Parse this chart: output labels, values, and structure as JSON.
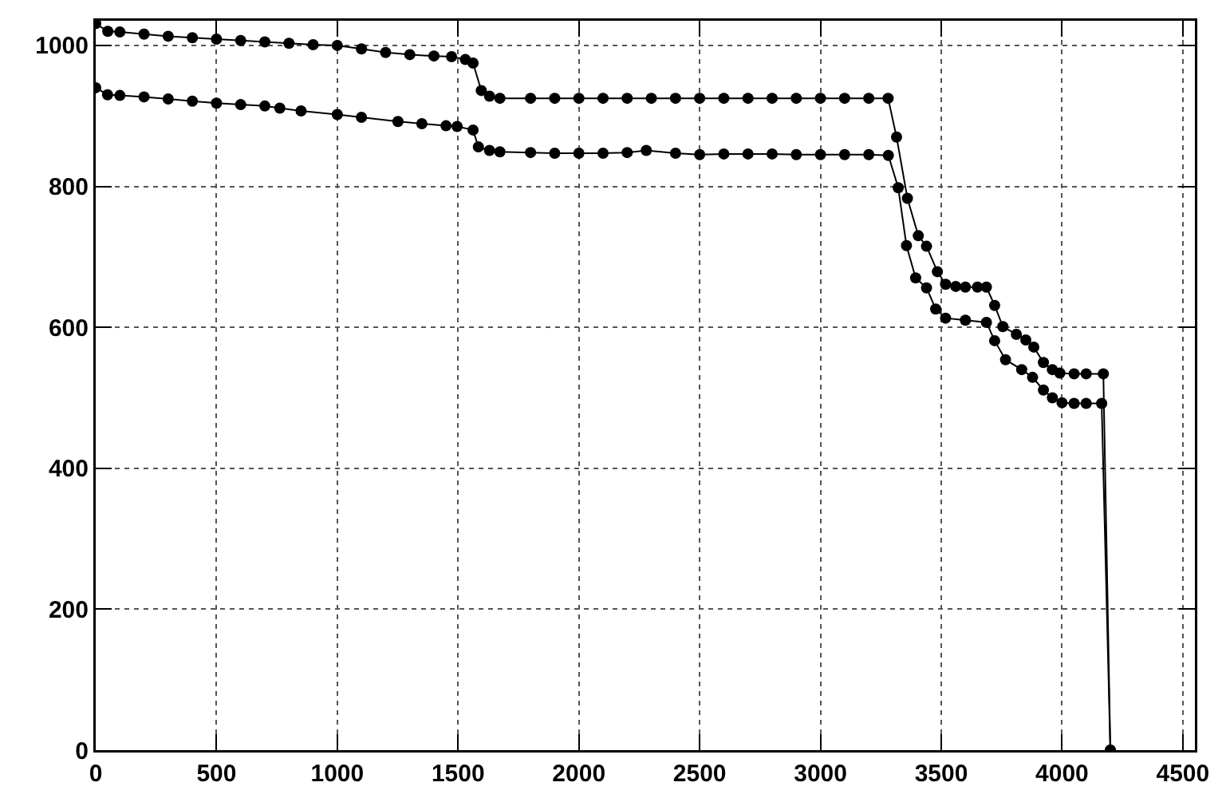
{
  "chart_data": {
    "type": "line",
    "marker": "circle",
    "line_style": "solid",
    "grid": true,
    "xlim": [
      0,
      4550
    ],
    "ylim": [
      0,
      1035
    ],
    "xticks": [
      0,
      500,
      1000,
      1500,
      2000,
      2500,
      3000,
      3500,
      4000,
      4500
    ],
    "yticks": [
      0,
      200,
      400,
      600,
      800,
      1000
    ],
    "series": [
      {
        "color": "#000000",
        "x": [
          0,
          50,
          100,
          200,
          300,
          400,
          500,
          600,
          700,
          800,
          900,
          1000,
          1100,
          1200,
          1300,
          1400,
          1473,
          1530,
          1562,
          1596,
          1630,
          1673,
          1800,
          1900,
          2000,
          2100,
          2200,
          2300,
          2400,
          2500,
          2600,
          2700,
          2800,
          2900,
          3000,
          3100,
          3200,
          3280,
          3315,
          3360,
          3405,
          3439,
          3484,
          3518,
          3560,
          3600,
          3650,
          3687,
          3721,
          3755,
          3811,
          3850,
          3883,
          3923,
          3960,
          3991,
          4050,
          4100,
          4171,
          4200
        ],
        "values": [
          1031,
          1020,
          1019,
          1016,
          1013,
          1011,
          1009,
          1007,
          1005,
          1003,
          1001,
          1000,
          995,
          990,
          987,
          985,
          984,
          980,
          975,
          936,
          928,
          925,
          925,
          925,
          925,
          925,
          925,
          925,
          925,
          925,
          925,
          925,
          925,
          925,
          925,
          925,
          925,
          925,
          870,
          783,
          730,
          715,
          679,
          661,
          658,
          657,
          657,
          657,
          631,
          601,
          590,
          582,
          572,
          550,
          540,
          535,
          534,
          534,
          534,
          0
        ]
      },
      {
        "color": "#000000",
        "x": [
          0,
          49,
          100,
          200,
          300,
          400,
          500,
          600,
          700,
          762,
          850,
          1000,
          1100,
          1251,
          1350,
          1450,
          1496,
          1562,
          1584,
          1630,
          1673,
          1800,
          1900,
          2000,
          2100,
          2200,
          2279,
          2400,
          2500,
          2600,
          2700,
          2800,
          2900,
          3000,
          3100,
          3200,
          3281,
          3322,
          3356,
          3394,
          3439,
          3477,
          3518,
          3600,
          3687,
          3721,
          3766,
          3833,
          3878,
          3923,
          3960,
          4000,
          4050,
          4100,
          4164,
          4200
        ],
        "values": [
          940,
          930,
          929,
          927,
          924,
          921,
          918,
          916,
          914,
          911,
          907,
          902,
          898,
          892,
          889,
          886,
          885,
          880,
          856,
          851,
          849,
          848,
          847,
          847,
          847,
          848,
          851,
          847,
          845,
          846,
          846,
          846,
          845,
          845,
          845,
          845,
          844,
          798,
          716,
          670,
          656,
          626,
          613,
          610,
          607,
          581,
          554,
          540,
          529,
          511,
          500,
          493,
          492,
          492,
          492,
          0
        ]
      }
    ]
  }
}
